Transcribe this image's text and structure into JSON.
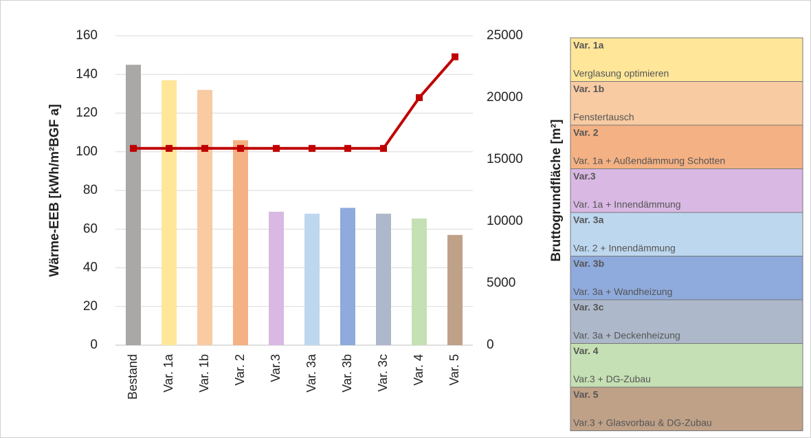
{
  "chart_data": {
    "type": "bar",
    "categories": [
      "Bestand",
      "Var. 1a",
      "Var. 1b",
      "Var. 2",
      "Var.3",
      "Var. 3a",
      "Var. 3b",
      "Var. 3c",
      "Var. 4",
      "Var. 5"
    ],
    "series": [
      {
        "type": "bar",
        "colors": [
          "#aaa7a7",
          "#ffe699",
          "#f8cba2",
          "#f4b183",
          "#d9b8e3",
          "#bdd7ee",
          "#8faadc",
          "#adb9ca",
          "#c5e0b4",
          "#bfa188"
        ],
        "values": [
          145,
          137,
          132,
          106,
          69,
          68,
          71,
          68,
          65.5,
          57
        ]
      },
      {
        "type": "line",
        "axis": "y2",
        "color": "#c00000",
        "values": [
          15900,
          15900,
          15900,
          15900,
          15900,
          15900,
          15900,
          15900,
          20000,
          23300
        ]
      }
    ],
    "ylabel": "Wärme-EEB [kWh/m²BGF a]",
    "y2label": "Bruttogrundfläche [m²]",
    "ylim": [
      0,
      160
    ],
    "yticks": [
      0,
      20,
      40,
      60,
      80,
      100,
      120,
      140,
      160
    ],
    "y2lim": [
      0,
      25000
    ],
    "y2ticks": [
      0,
      5000,
      10000,
      15000,
      20000,
      25000
    ],
    "grid": true,
    "legend": [
      {
        "title": "Var. 1a",
        "description": "Verglasung optimieren"
      },
      {
        "title": "Var. 1b",
        "description": "Fenstertausch"
      },
      {
        "title": "Var. 2",
        "description": "Var. 1a + Außendämmung Schotten"
      },
      {
        "title": "Var.3",
        "description": "Var. 1a + Innendämmung"
      },
      {
        "title": "Var. 3a",
        "description": "Var. 2 + Innendämmung"
      },
      {
        "title": "Var. 3b",
        "description": "Var. 3a + Wandheizung"
      },
      {
        "title": "Var. 3c",
        "description": "Var. 3a + Deckenheizung"
      },
      {
        "title": "Var. 4",
        "description": "Var.3 + DG-Zubau"
      },
      {
        "title": "Var. 5",
        "description": "Var.3 + Glasvorbau & DG-Zubau"
      }
    ]
  }
}
